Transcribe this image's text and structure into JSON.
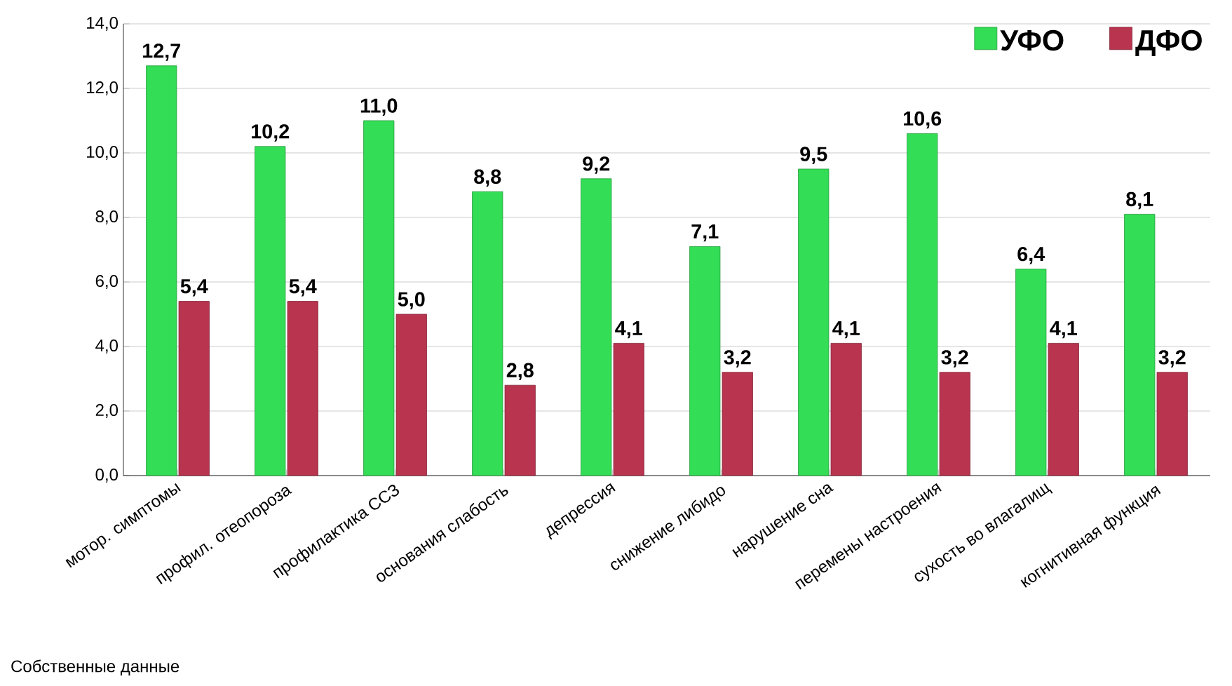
{
  "chart_data": {
    "type": "bar",
    "categories": [
      "мотор. симптомы",
      "профил. отеопороза",
      "профилактика ССЗ",
      "основания слабость",
      "депрессия",
      "снижение либидо",
      "нарушение сна",
      "перемены настроения",
      "сухость во влагалищ",
      "когнитивная функция"
    ],
    "series": [
      {
        "name": "УФО",
        "color": "#33dd55",
        "values": [
          12.7,
          10.2,
          11.0,
          8.8,
          9.2,
          7.1,
          9.5,
          10.6,
          6.4,
          8.1
        ],
        "value_labels": [
          "12,7",
          "10,2",
          "11,0",
          "8,8",
          "9,2",
          "7,1",
          "9,5",
          "10,6",
          "6,4",
          "8,1"
        ]
      },
      {
        "name": "ДФО",
        "color": "#b8344f",
        "values": [
          5.4,
          5.4,
          5.0,
          2.8,
          4.1,
          3.2,
          4.1,
          3.2,
          4.1,
          3.2
        ],
        "value_labels": [
          "5,4",
          "5,4",
          "5,0",
          "2,8",
          "4,1",
          "3,2",
          "4,1",
          "3,2",
          "4,1",
          "3,2"
        ]
      }
    ],
    "ylim": [
      0,
      14
    ],
    "yticks": [
      {
        "value": 0,
        "label": "0,0"
      },
      {
        "value": 2,
        "label": "2,0"
      },
      {
        "value": 4,
        "label": "4,0"
      },
      {
        "value": 6,
        "label": "6,0"
      },
      {
        "value": 8,
        "label": "8,0"
      },
      {
        "value": 10,
        "label": "10,0"
      },
      {
        "value": 12,
        "label": "12,0"
      },
      {
        "value": 14,
        "label": "14,0"
      }
    ],
    "grid": "y",
    "legend": "top right",
    "annotations": [
      "Собственные данные"
    ]
  }
}
